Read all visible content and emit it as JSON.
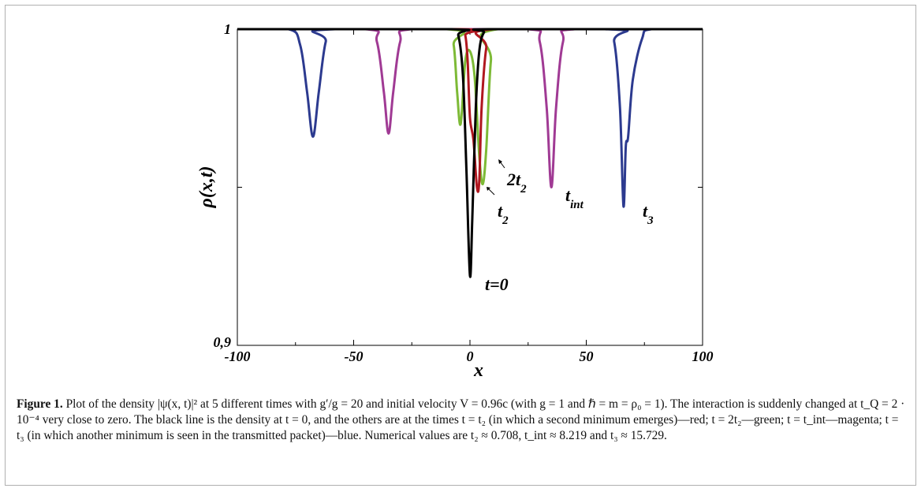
{
  "chart_data": {
    "type": "line",
    "xlabel": "x",
    "ylabel": "ρ(x,t)",
    "xlim": [
      -100,
      100
    ],
    "ylim": [
      0.9,
      1.0
    ],
    "x_ticks": [
      -100,
      -50,
      0,
      50,
      100
    ],
    "x_tick_labels": [
      "-100",
      "-50",
      "0",
      "50",
      "100"
    ],
    "y_tick_labels": [
      "0,9",
      "1"
    ],
    "grid": false,
    "series": [
      {
        "name": "t=0",
        "color": "#000000",
        "x": [
          -100,
          -8,
          -5,
          -3,
          -1.5,
          0,
          1,
          2.5,
          4,
          6,
          9,
          100
        ],
        "y": [
          1,
          1,
          0.998,
          0.985,
          0.955,
          0.922,
          0.94,
          0.975,
          0.993,
          0.999,
          1,
          1
        ]
      },
      {
        "name": "t2",
        "color": "#b0171f",
        "x": [
          -100,
          -4,
          -2,
          -1,
          0,
          1.5,
          3,
          4,
          5,
          7,
          10,
          100
        ],
        "y": [
          1,
          1,
          0.998,
          0.99,
          0.972,
          0.965,
          0.95,
          0.952,
          0.975,
          0.994,
          1,
          1
        ]
      },
      {
        "name": "2t2",
        "color": "#7dba36",
        "x": [
          -100,
          -10,
          -7,
          -5.5,
          -4,
          -2,
          0,
          2,
          4,
          5.5,
          7,
          9,
          12,
          100
        ],
        "y": [
          1,
          1,
          0.995,
          0.98,
          0.97,
          0.99,
          0.993,
          0.985,
          0.96,
          0.951,
          0.962,
          0.99,
          1,
          1
        ]
      },
      {
        "name": "t_int",
        "color": "#a03a94",
        "x": [
          -100,
          -45,
          -40,
          -37,
          -35,
          -33,
          -30,
          -25,
          25,
          30,
          33,
          35,
          37,
          40,
          45,
          100
        ],
        "y": [
          1,
          1,
          0.996,
          0.98,
          0.967,
          0.98,
          0.996,
          1,
          1,
          0.996,
          0.975,
          0.95,
          0.975,
          0.996,
          1,
          1
        ]
      },
      {
        "name": "t3",
        "color": "#2c3a8f",
        "x": [
          -100,
          -78,
          -73,
          -70,
          -67.5,
          -65,
          -62,
          -58,
          58,
          62,
          64.5,
          66,
          67,
          68,
          70,
          74,
          78,
          100
        ],
        "y": [
          1,
          1,
          0.995,
          0.98,
          0.966,
          0.98,
          0.996,
          1,
          1,
          0.996,
          0.975,
          0.944,
          0.963,
          0.966,
          0.984,
          0.997,
          1,
          1
        ]
      }
    ],
    "annotations": [
      {
        "text": "t=0"
      },
      {
        "text": "t",
        "sub": "2"
      },
      {
        "text": "2t",
        "sub": "2"
      },
      {
        "text": "t",
        "sub": "int"
      },
      {
        "text": "t",
        "sub": "3"
      }
    ]
  },
  "caption": {
    "label": "Figure 1.",
    "text": " Plot of the density |ψ(x, t)|² at 5 different times with g′/g = 20 and initial velocity V = 0.96c (with g = 1 and ℏ = m = ρ₀ = 1). The interaction is suddenly changed at t_Q = 2 · 10⁻⁴ very close to zero. The black line is the density at t = 0, and the others are at the times t = t₂ (in which a second minimum emerges)—red; t = 2t₂—green; t = t_int—magenta; t = t₃ (in which another minimum is seen in the transmitted packet)—blue. Numerical values are t₂ ≈ 0.708, t_int ≈ 8.219 and t₃ ≈ 15.729."
  }
}
